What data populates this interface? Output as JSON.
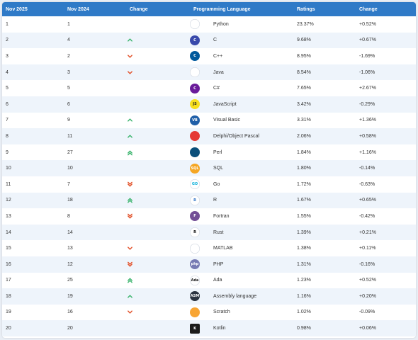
{
  "table": {
    "headers": {
      "nov2025": "Nov 2025",
      "nov2024": "Nov 2024",
      "change": "Change",
      "language": "Programming Language",
      "ratings": "Ratings",
      "change2": "Change"
    },
    "rows": [
      {
        "rank": "1",
        "prev": "1",
        "trend": "none",
        "language": "Python",
        "ratings": "23.37%",
        "change": "+0.52%",
        "icon": "python-icon"
      },
      {
        "rank": "2",
        "prev": "4",
        "trend": "up",
        "language": "C",
        "ratings": "9.68%",
        "change": "+0.67%",
        "icon": "c-icon"
      },
      {
        "rank": "3",
        "prev": "2",
        "trend": "down",
        "language": "C++",
        "ratings": "8.95%",
        "change": "-1.69%",
        "icon": "cplusplus-icon"
      },
      {
        "rank": "4",
        "prev": "3",
        "trend": "down",
        "language": "Java",
        "ratings": "8.54%",
        "change": "-1.06%",
        "icon": "java-icon"
      },
      {
        "rank": "5",
        "prev": "5",
        "trend": "none",
        "language": "C#",
        "ratings": "7.65%",
        "change": "+2.67%",
        "icon": "csharp-icon"
      },
      {
        "rank": "6",
        "prev": "6",
        "trend": "none",
        "language": "JavaScript",
        "ratings": "3.42%",
        "change": "-0.29%",
        "icon": "javascript-icon"
      },
      {
        "rank": "7",
        "prev": "9",
        "trend": "up",
        "language": "Visual Basic",
        "ratings": "3.31%",
        "change": "+1.36%",
        "icon": "visual-basic-icon"
      },
      {
        "rank": "8",
        "prev": "11",
        "trend": "up",
        "language": "Delphi/Object Pascal",
        "ratings": "2.06%",
        "change": "+0.58%",
        "icon": "delphi-icon"
      },
      {
        "rank": "9",
        "prev": "27",
        "trend": "up2",
        "language": "Perl",
        "ratings": "1.84%",
        "change": "+1.16%",
        "icon": "perl-icon"
      },
      {
        "rank": "10",
        "prev": "10",
        "trend": "none",
        "language": "SQL",
        "ratings": "1.80%",
        "change": "-0.14%",
        "icon": "sql-icon"
      },
      {
        "rank": "11",
        "prev": "7",
        "trend": "down2",
        "language": "Go",
        "ratings": "1.72%",
        "change": "-0.63%",
        "icon": "go-icon"
      },
      {
        "rank": "12",
        "prev": "18",
        "trend": "up2",
        "language": "R",
        "ratings": "1.67%",
        "change": "+0.65%",
        "icon": "r-icon"
      },
      {
        "rank": "13",
        "prev": "8",
        "trend": "down2",
        "language": "Fortran",
        "ratings": "1.55%",
        "change": "-0.42%",
        "icon": "fortran-icon"
      },
      {
        "rank": "14",
        "prev": "14",
        "trend": "none",
        "language": "Rust",
        "ratings": "1.39%",
        "change": "+0.21%",
        "icon": "rust-icon"
      },
      {
        "rank": "15",
        "prev": "13",
        "trend": "down",
        "language": "MATLAB",
        "ratings": "1.38%",
        "change": "+0.11%",
        "icon": "matlab-icon"
      },
      {
        "rank": "16",
        "prev": "12",
        "trend": "down2",
        "language": "PHP",
        "ratings": "1.31%",
        "change": "-0.16%",
        "icon": "php-icon"
      },
      {
        "rank": "17",
        "prev": "25",
        "trend": "up2",
        "language": "Ada",
        "ratings": "1.23%",
        "change": "+0.52%",
        "icon": "ada-icon"
      },
      {
        "rank": "18",
        "prev": "19",
        "trend": "up",
        "language": "Assembly language",
        "ratings": "1.16%",
        "change": "+0.20%",
        "icon": "assembly-icon"
      },
      {
        "rank": "19",
        "prev": "16",
        "trend": "down",
        "language": "Scratch",
        "ratings": "1.02%",
        "change": "-0.09%",
        "icon": "scratch-icon"
      },
      {
        "rank": "20",
        "prev": "20",
        "trend": "none",
        "language": "Kotlin",
        "ratings": "0.98%",
        "change": "+0.06%",
        "icon": "kotlin-icon"
      }
    ]
  },
  "colors": {
    "header_bg": "#2f7ac7",
    "zebra": "#eef4fb",
    "up": "#3cb46e",
    "down": "#e2522b"
  },
  "logos": {
    "python-icon": {
      "bg": "#ffffff",
      "fg": "#3572A5",
      "text": "",
      "shape": "circle"
    },
    "c-icon": {
      "bg": "#3949ab",
      "fg": "#ffffff",
      "text": "C",
      "shape": "circle"
    },
    "cplusplus-icon": {
      "bg": "#00599c",
      "fg": "#ffffff",
      "text": "C",
      "shape": "circle"
    },
    "java-icon": {
      "bg": "#ffffff",
      "fg": "#e76f00",
      "text": "",
      "shape": "circle"
    },
    "csharp-icon": {
      "bg": "#6a1b9a",
      "fg": "#ffffff",
      "text": "C",
      "shape": "circle"
    },
    "javascript-icon": {
      "bg": "#f7df1e",
      "fg": "#222222",
      "text": "JS",
      "shape": "circle"
    },
    "visual-basic-icon": {
      "bg": "#1f5fa8",
      "fg": "#ffffff",
      "text": "VB",
      "shape": "circle"
    },
    "delphi-icon": {
      "bg": "#e53935",
      "fg": "#ffffff",
      "text": "",
      "shape": "circle"
    },
    "perl-icon": {
      "bg": "#0b4f7a",
      "fg": "#ffffff",
      "text": "",
      "shape": "circle"
    },
    "sql-icon": {
      "bg": "#f5a623",
      "fg": "#ffffff",
      "text": "SQL",
      "shape": "circle"
    },
    "go-icon": {
      "bg": "#ffffff",
      "fg": "#00add8",
      "text": "GO",
      "shape": "circle"
    },
    "r-icon": {
      "bg": "#ffffff",
      "fg": "#276dc3",
      "text": "R",
      "shape": "circle"
    },
    "fortran-icon": {
      "bg": "#734f96",
      "fg": "#ffffff",
      "text": "F",
      "shape": "circle"
    },
    "rust-icon": {
      "bg": "#ffffff",
      "fg": "#000000",
      "text": "R",
      "shape": "circle"
    },
    "matlab-icon": {
      "bg": "#ffffff",
      "fg": "#e16737",
      "text": "",
      "shape": "circle"
    },
    "php-icon": {
      "bg": "#777bb3",
      "fg": "#ffffff",
      "text": "php",
      "shape": "circle"
    },
    "ada-icon": {
      "bg": "#ffffff",
      "fg": "#1a1a1a",
      "text": "Ada",
      "shape": "circle"
    },
    "assembly-icon": {
      "bg": "#2b3340",
      "fg": "#ffffff",
      "text": "ASM",
      "shape": "circle"
    },
    "scratch-icon": {
      "bg": "#f8a533",
      "fg": "#ffffff",
      "text": "",
      "shape": "circle"
    },
    "kotlin-icon": {
      "bg": "#1b1b1b",
      "fg": "#ffffff",
      "text": "K",
      "shape": "square"
    }
  }
}
